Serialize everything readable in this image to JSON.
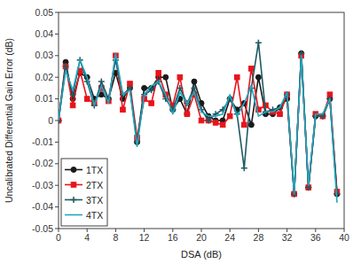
{
  "chart_data": {
    "type": "line",
    "x_label": "DSA (dB)",
    "y_label": "Uncalibrated Differential Gain Error (dB)",
    "x": [
      0,
      1,
      2,
      3,
      4,
      5,
      6,
      7,
      8,
      9,
      10,
      11,
      12,
      13,
      14,
      15,
      16,
      17,
      18,
      19,
      20,
      21,
      22,
      23,
      24,
      25,
      26,
      27,
      28,
      29,
      30,
      31,
      32,
      33,
      34,
      35,
      36,
      37,
      38,
      39
    ],
    "series": [
      {
        "name": "1TX",
        "color": "#1a1a1a",
        "marker": "circle",
        "line_style": "solid",
        "values": [
          0,
          0.027,
          0.01,
          0.022,
          0.02,
          0.01,
          0.012,
          0.01,
          0.022,
          0.01,
          0.015,
          -0.01,
          0.015,
          0.015,
          0.02,
          0.02,
          0.005,
          0.01,
          0.003,
          0.018,
          0.008,
          0.002,
          0.0,
          0.0,
          0.01,
          0.005,
          0.008,
          -0.002,
          0.02,
          0.003,
          0.003,
          0.006,
          0.01,
          -0.034,
          0.031,
          -0.031,
          0.002,
          0.002,
          0.01,
          -0.034
        ]
      },
      {
        "name": "2TX",
        "color": "#e8141c",
        "marker": "square",
        "line_style": "solid",
        "values": [
          0,
          0.025,
          0.007,
          0.023,
          0.01,
          0.008,
          0.015,
          0.009,
          0.03,
          0.005,
          0.017,
          -0.008,
          0.01,
          0.008,
          0.022,
          0.012,
          0.007,
          0.02,
          0.003,
          0.012,
          0.0,
          0.0,
          -0.001,
          -0.002,
          0.002,
          0.02,
          -0.002,
          0.024,
          0.005,
          0.007,
          0.004,
          0.003,
          0.012,
          -0.034,
          0.03,
          -0.031,
          0.003,
          0.002,
          0.012,
          -0.033
        ]
      },
      {
        "name": "3TX",
        "color": "#1f5a63",
        "marker": "plus",
        "line_style": "solid",
        "values": [
          0,
          0.025,
          0.012,
          0.028,
          0.018,
          0.007,
          0.018,
          0.01,
          0.028,
          0.012,
          0.015,
          -0.01,
          0.012,
          0.014,
          0.018,
          0.01,
          0.005,
          0.015,
          0.008,
          0.015,
          0.005,
          0.0,
          0.003,
          0.005,
          0.01,
          0.003,
          -0.022,
          0.015,
          0.036,
          0.004,
          0.005,
          0.006,
          0.012,
          -0.034,
          0.031,
          -0.031,
          0.002,
          0.002,
          0.01,
          -0.034
        ]
      },
      {
        "name": "4TX",
        "color": "#1fa8c0",
        "marker": "none",
        "line_style": "solid",
        "values": [
          0,
          0.023,
          0.014,
          0.028,
          0.02,
          0.007,
          0.016,
          0.008,
          0.031,
          0.012,
          0.014,
          -0.012,
          0.012,
          0.016,
          0.018,
          0.012,
          0.003,
          0.013,
          0.008,
          0.013,
          0.004,
          0.002,
          0.002,
          0.003,
          0.012,
          0.002,
          0.008,
          0.016,
          0.002,
          0.004,
          0.004,
          0.006,
          0.013,
          -0.034,
          0.03,
          -0.03,
          0.003,
          0.003,
          0.01,
          -0.038
        ]
      }
    ],
    "xlim": [
      0,
      40
    ],
    "xticks": [
      0,
      4,
      8,
      12,
      16,
      20,
      24,
      28,
      32,
      36,
      40
    ],
    "ylim": [
      -0.05,
      0.05
    ],
    "yticks": [
      -0.05,
      -0.04,
      -0.03,
      -0.02,
      -0.01,
      0,
      0.01,
      0.02,
      0.03,
      0.04,
      0.05
    ],
    "grid": false,
    "legend": "bottom-left"
  }
}
